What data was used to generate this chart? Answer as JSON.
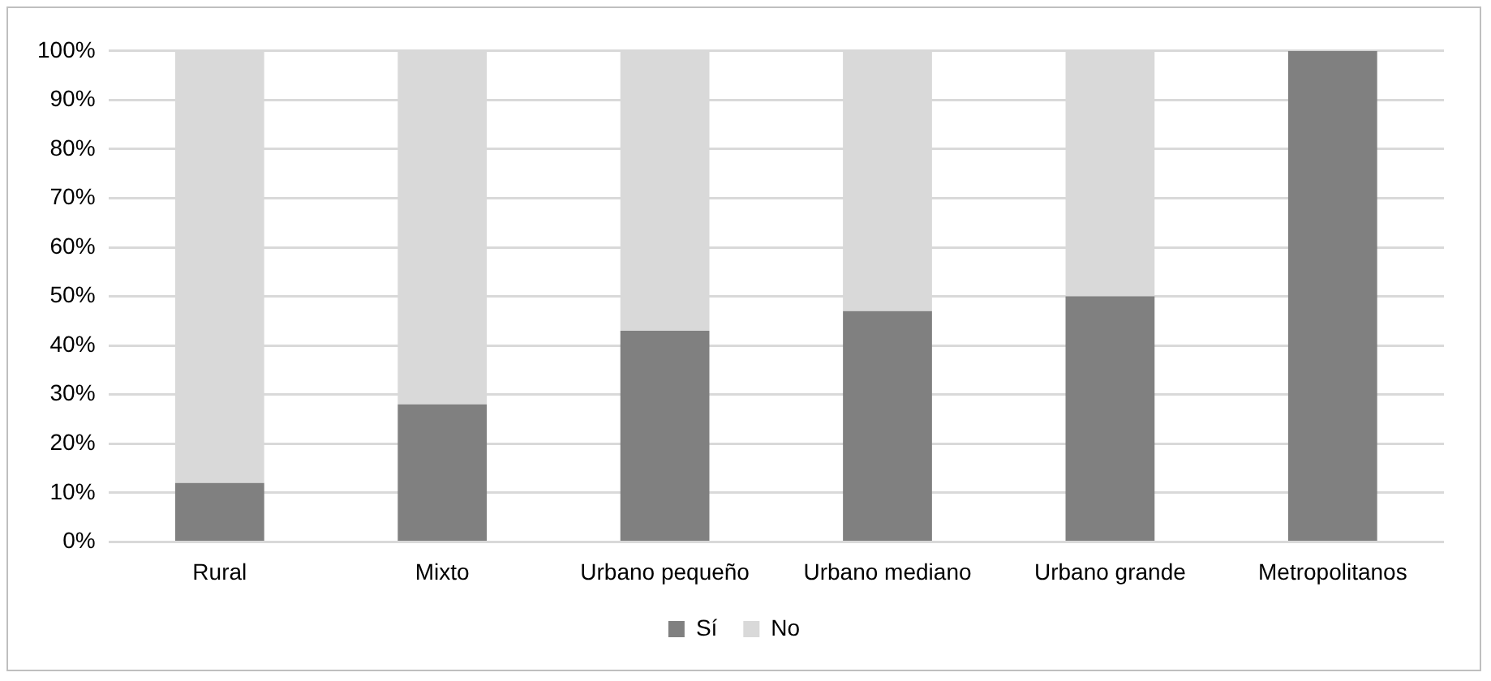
{
  "chart_data": {
    "type": "bar",
    "stacked": true,
    "categories": [
      "Rural",
      "Mixto",
      "Urbano pequeño",
      "Urbano mediano",
      "Urbano grande",
      "Metropolitanos"
    ],
    "series": [
      {
        "name": "Sí",
        "color": "#808080",
        "values": [
          12,
          28,
          43,
          47,
          50,
          100
        ]
      },
      {
        "name": "No",
        "color": "#d9d9d9",
        "values": [
          88,
          72,
          57,
          53,
          50,
          0
        ]
      }
    ],
    "ylim": [
      0,
      100
    ],
    "yticks": [
      {
        "value": 0,
        "label": "0%"
      },
      {
        "value": 10,
        "label": "10%"
      },
      {
        "value": 20,
        "label": "20%"
      },
      {
        "value": 30,
        "label": "30%"
      },
      {
        "value": 40,
        "label": "40%"
      },
      {
        "value": 50,
        "label": "50%"
      },
      {
        "value": 60,
        "label": "60%"
      },
      {
        "value": 70,
        "label": "70%"
      },
      {
        "value": 80,
        "label": "80%"
      },
      {
        "value": 90,
        "label": "90%"
      },
      {
        "value": 100,
        "label": "100%"
      }
    ],
    "grid": "y",
    "legend": "bottom"
  }
}
